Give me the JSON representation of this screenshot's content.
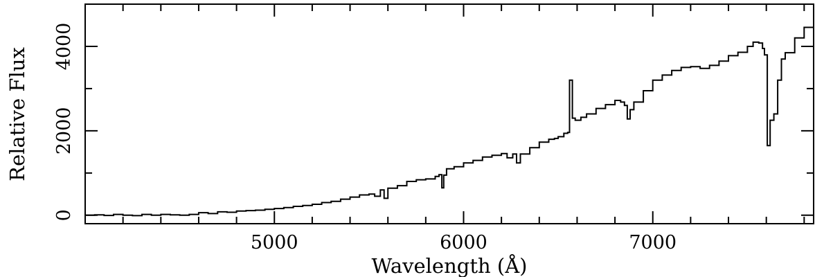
{
  "chart_data": {
    "type": "line",
    "title": "",
    "xlabel": "Wavelength (Å)",
    "ylabel": "Relative Flux",
    "xlim": [
      4000,
      7850
    ],
    "ylim": [
      -200,
      5000
    ],
    "x_ticks": [
      5000,
      6000,
      7000
    ],
    "y_ticks": [
      0,
      2000,
      4000
    ],
    "grid": false,
    "legend": "none",
    "line_color": "#000000",
    "series": [
      {
        "step": true,
        "x": [
          4000,
          4050,
          4100,
          4150,
          4200,
          4250,
          4300,
          4350,
          4400,
          4450,
          4500,
          4550,
          4600,
          4650,
          4700,
          4750,
          4800,
          4850,
          4900,
          4950,
          5000,
          5050,
          5100,
          5150,
          5200,
          5250,
          5300,
          5350,
          5400,
          5450,
          5500,
          5530,
          5560,
          5580,
          5600,
          5650,
          5700,
          5750,
          5800,
          5850,
          5870,
          5885,
          5895,
          5910,
          5950,
          6000,
          6050,
          6100,
          6150,
          6200,
          6230,
          6260,
          6280,
          6300,
          6350,
          6400,
          6450,
          6480,
          6500,
          6530,
          6550,
          6560,
          6575,
          6590,
          6620,
          6650,
          6700,
          6750,
          6800,
          6830,
          6850,
          6865,
          6880,
          6900,
          6950,
          7000,
          7050,
          7100,
          7150,
          7200,
          7250,
          7300,
          7350,
          7400,
          7450,
          7500,
          7530,
          7560,
          7580,
          7590,
          7605,
          7620,
          7640,
          7660,
          7680,
          7700,
          7750,
          7800,
          7850
        ],
        "y": [
          0,
          10,
          -5,
          20,
          0,
          -10,
          20,
          0,
          20,
          10,
          0,
          20,
          60,
          40,
          80,
          70,
          100,
          110,
          120,
          140,
          160,
          180,
          210,
          230,
          260,
          300,
          330,
          380,
          430,
          480,
          500,
          450,
          600,
          400,
          640,
          700,
          800,
          840,
          860,
          920,
          960,
          650,
          950,
          1100,
          1150,
          1240,
          1300,
          1380,
          1420,
          1460,
          1360,
          1450,
          1240,
          1450,
          1600,
          1730,
          1800,
          1820,
          1860,
          1940,
          1960,
          3200,
          2300,
          2250,
          2320,
          2400,
          2530,
          2620,
          2720,
          2680,
          2600,
          2280,
          2500,
          2680,
          2950,
          3200,
          3320,
          3430,
          3500,
          3520,
          3480,
          3550,
          3650,
          3780,
          3860,
          4000,
          4100,
          4080,
          3950,
          3800,
          1650,
          2250,
          2400,
          3200,
          3700,
          3850,
          4200,
          4450,
          4550
        ]
      }
    ]
  }
}
